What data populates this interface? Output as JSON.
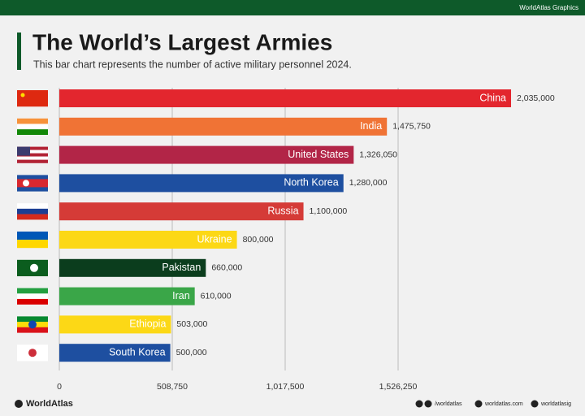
{
  "header": {
    "brand": "WorldAtlas Graphics"
  },
  "chart_data": {
    "type": "hbar",
    "title": "The World’s Largest Armies",
    "subtitle": "This bar chart  represents the number of active military personnel 2024.",
    "categories": [
      "China",
      "India",
      "United States",
      "North Korea",
      "Russia",
      "Ukraine",
      "Pakistan",
      "Iran",
      "Ethiopia",
      "South Korea"
    ],
    "values": [
      2035000,
      1475750,
      1326050,
      1280000,
      1100000,
      800000,
      660000,
      610000,
      503000,
      500000
    ],
    "value_labels": [
      "2,035,000",
      "1,475,750",
      "1,326,050",
      "1,280,000",
      "1,100,000",
      "800,000",
      "660,000",
      "610,000",
      "503,000",
      "500,000"
    ],
    "colors": [
      "#e3262e",
      "#f07335",
      "#b22547",
      "#1e4fa0",
      "#d53b37",
      "#fcd816",
      "#0b3d1d",
      "#3aa648",
      "#fcd816",
      "#1e4fa0"
    ],
    "xlim": [
      0,
      2035000
    ],
    "xticks": [
      0,
      {
        "value": 508750,
        "label": "508,750"
      },
      {
        "value": 1017500,
        "label": "1,017,500"
      },
      {
        "value": 1526250,
        "label": "1,526,250"
      }
    ],
    "grid": true
  },
  "footer": {
    "logo": "WorldAtlas",
    "facebook": "/worldatlas",
    "website": "worldatlas.com",
    "instagram": "worldatlasig"
  }
}
